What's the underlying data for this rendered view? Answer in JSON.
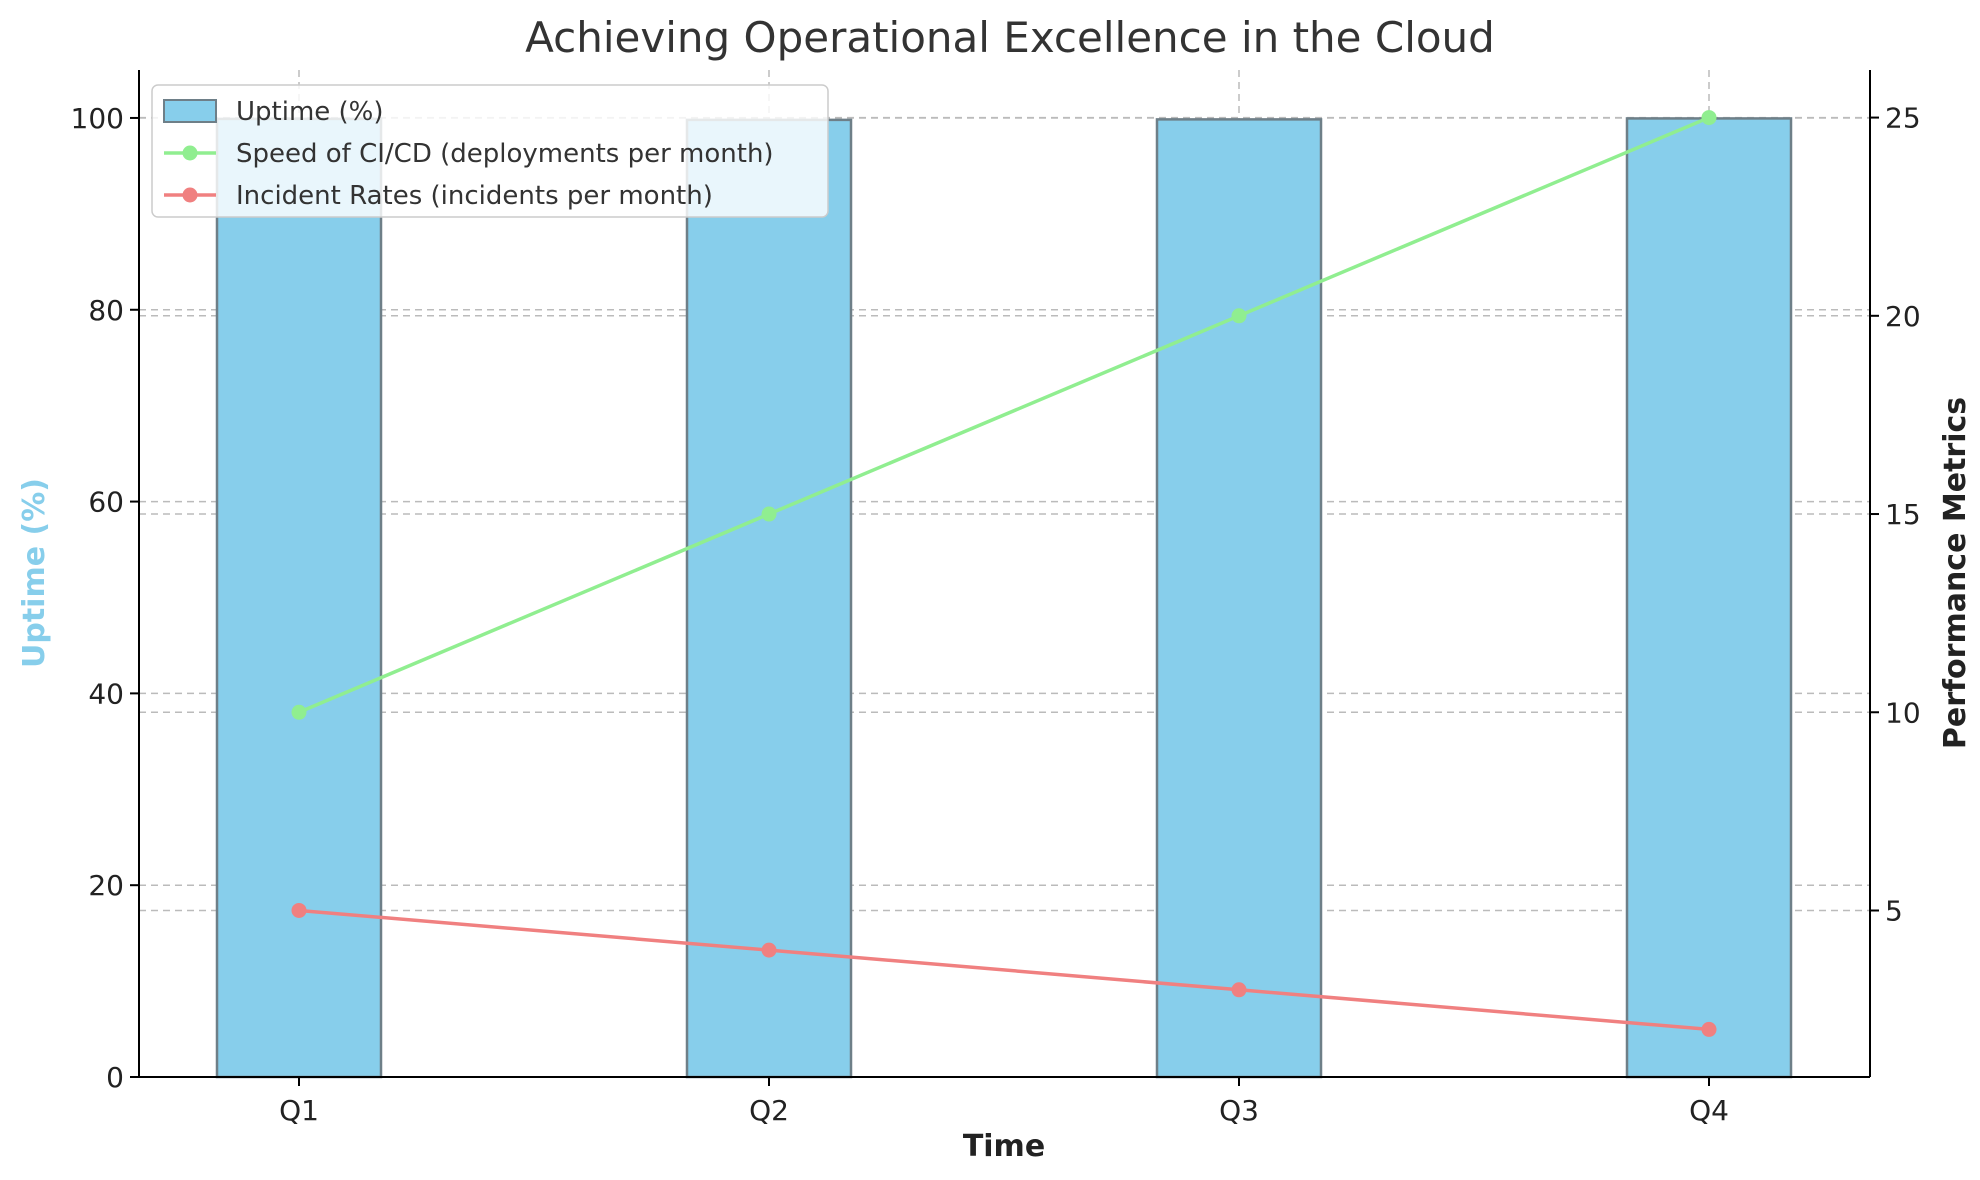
{
  "chart_data": {
    "type": "bar",
    "title": "Achieving Operational Excellence in the Cloud",
    "xlabel": "Time",
    "ylabel_left": "Uptime (%)",
    "ylabel_right": "Performance Metrics",
    "categories": [
      "Q1",
      "Q2",
      "Q3",
      "Q4"
    ],
    "ylim_left": [
      0,
      105
    ],
    "ylim_right": [
      0.8,
      26.2
    ],
    "yticks_left": [
      0,
      20,
      40,
      60,
      80,
      100
    ],
    "yticks_right": [
      5,
      10,
      15,
      20,
      25
    ],
    "grid": true,
    "legend_position": "upper-left",
    "series": [
      {
        "name": "Uptime (%)",
        "type": "bar",
        "axis": "left",
        "color": "#87CEEB",
        "edge_color": "#6e7f88",
        "values": [
          99.9,
          99.8,
          99.85,
          99.95
        ]
      },
      {
        "name": "Speed of CI/CD (deployments per month)",
        "type": "line",
        "axis": "right",
        "color": "#90EE90",
        "values": [
          10,
          15,
          20,
          25
        ]
      },
      {
        "name": "Incident Rates (incidents per month)",
        "type": "line",
        "axis": "right",
        "color": "#F08080",
        "values": [
          5,
          4,
          3,
          2
        ]
      }
    ],
    "colors": {
      "left_axis_label": "#87CEEB",
      "right_axis_label": "#222222",
      "grid": "#bbbbbb",
      "axis": "#000000"
    }
  }
}
